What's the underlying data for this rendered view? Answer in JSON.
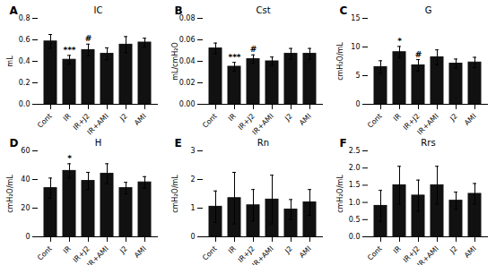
{
  "chart_data": [
    {
      "type": "bar",
      "panel_label": "A",
      "title": "IC",
      "ylabel": "mL",
      "categories": [
        "Cont",
        "IR",
        "IR+J2",
        "IR+AMI",
        "J2",
        "AMI"
      ],
      "values": [
        0.585,
        0.415,
        0.505,
        0.47,
        0.555,
        0.575
      ],
      "errors": [
        0.065,
        0.04,
        0.055,
        0.055,
        0.075,
        0.04
      ],
      "annotations": [
        {
          "category": "IR",
          "text": "***"
        },
        {
          "category": "IR+J2",
          "text": "#"
        }
      ],
      "color": "#111111",
      "ylim": [
        0.0,
        0.8
      ],
      "yticks": [
        {
          "value": 0.0,
          "label": "0.0"
        },
        0.2,
        0.4,
        0.6,
        0.8
      ]
    },
    {
      "type": "bar",
      "panel_label": "B",
      "title": "Cst",
      "ylabel": "mL/cmH₂O",
      "categories": [
        "Cont",
        "IR",
        "IR+J2",
        "IR+AMI",
        "J2",
        "AMI"
      ],
      "values": [
        0.052,
        0.035,
        0.042,
        0.04,
        0.047,
        0.047
      ],
      "errors": [
        0.005,
        0.004,
        0.004,
        0.004,
        0.005,
        0.005
      ],
      "annotations": [
        {
          "category": "IR",
          "text": "***"
        },
        {
          "category": "IR+J2",
          "text": "#"
        }
      ],
      "color": "#111111",
      "ylim": [
        0.0,
        0.08
      ],
      "yticks": [
        {
          "value": 0.0,
          "label": "0.00"
        },
        0.02,
        0.04,
        0.06,
        0.08
      ]
    },
    {
      "type": "bar",
      "panel_label": "C",
      "title": "G",
      "ylabel": "cmH₂O/mL",
      "categories": [
        "Cont",
        "IR",
        "IR+J2",
        "IR+AMI",
        "J2",
        "AMI"
      ],
      "values": [
        6.5,
        9.1,
        6.8,
        8.2,
        7.1,
        7.3
      ],
      "errors": [
        1.1,
        1.0,
        1.0,
        1.3,
        0.8,
        0.9
      ],
      "annotations": [
        {
          "category": "IR",
          "text": "*"
        },
        {
          "category": "IR+J2",
          "text": "#"
        }
      ],
      "color": "#111111",
      "ylim": [
        0,
        15
      ],
      "yticks": [
        0,
        5,
        10,
        15
      ]
    },
    {
      "type": "bar",
      "panel_label": "D",
      "title": "H",
      "ylabel": "cmH₂O/mL",
      "categories": [
        "Cont",
        "IR",
        "IR+J2",
        "IR+AMI",
        "J2",
        "AMI"
      ],
      "values": [
        34,
        46,
        39,
        44,
        34,
        38
      ],
      "errors": [
        7,
        5,
        6,
        7,
        4,
        4
      ],
      "annotations": [
        {
          "category": "IR",
          "text": "*"
        }
      ],
      "color": "#111111",
      "ylim": [
        0,
        60
      ],
      "yticks": [
        0,
        20,
        40,
        60
      ]
    },
    {
      "type": "bar",
      "panel_label": "E",
      "title": "Rn",
      "ylabel": "cmH₂O/mL",
      "categories": [
        "Cont",
        "IR",
        "IR+J2",
        "IR+AMI",
        "J2",
        "AMI"
      ],
      "values": [
        1.05,
        1.35,
        1.1,
        1.3,
        0.95,
        1.2
      ],
      "errors": [
        0.55,
        0.9,
        0.55,
        0.85,
        0.35,
        0.45
      ],
      "color": "#111111",
      "ylim": [
        0,
        3
      ],
      "yticks": [
        0,
        1,
        2,
        3
      ]
    },
    {
      "type": "bar",
      "panel_label": "F",
      "title": "Rrs",
      "ylabel": "cmH₂O/mL",
      "categories": [
        "Cont",
        "IR",
        "IR+J2",
        "IR+AMI",
        "J2",
        "AMI"
      ],
      "values": [
        0.9,
        1.5,
        1.2,
        1.5,
        1.05,
        1.25
      ],
      "errors": [
        0.45,
        0.55,
        0.45,
        0.55,
        0.25,
        0.3
      ],
      "color": "#111111",
      "ylim": [
        0.0,
        2.5
      ],
      "yticks": [
        {
          "value": 0.0,
          "label": "0.0"
        },
        0.5,
        {
          "value": 1.0,
          "label": "1.0"
        },
        1.5,
        {
          "value": 2.0,
          "label": "2.0"
        },
        2.5
      ]
    }
  ]
}
